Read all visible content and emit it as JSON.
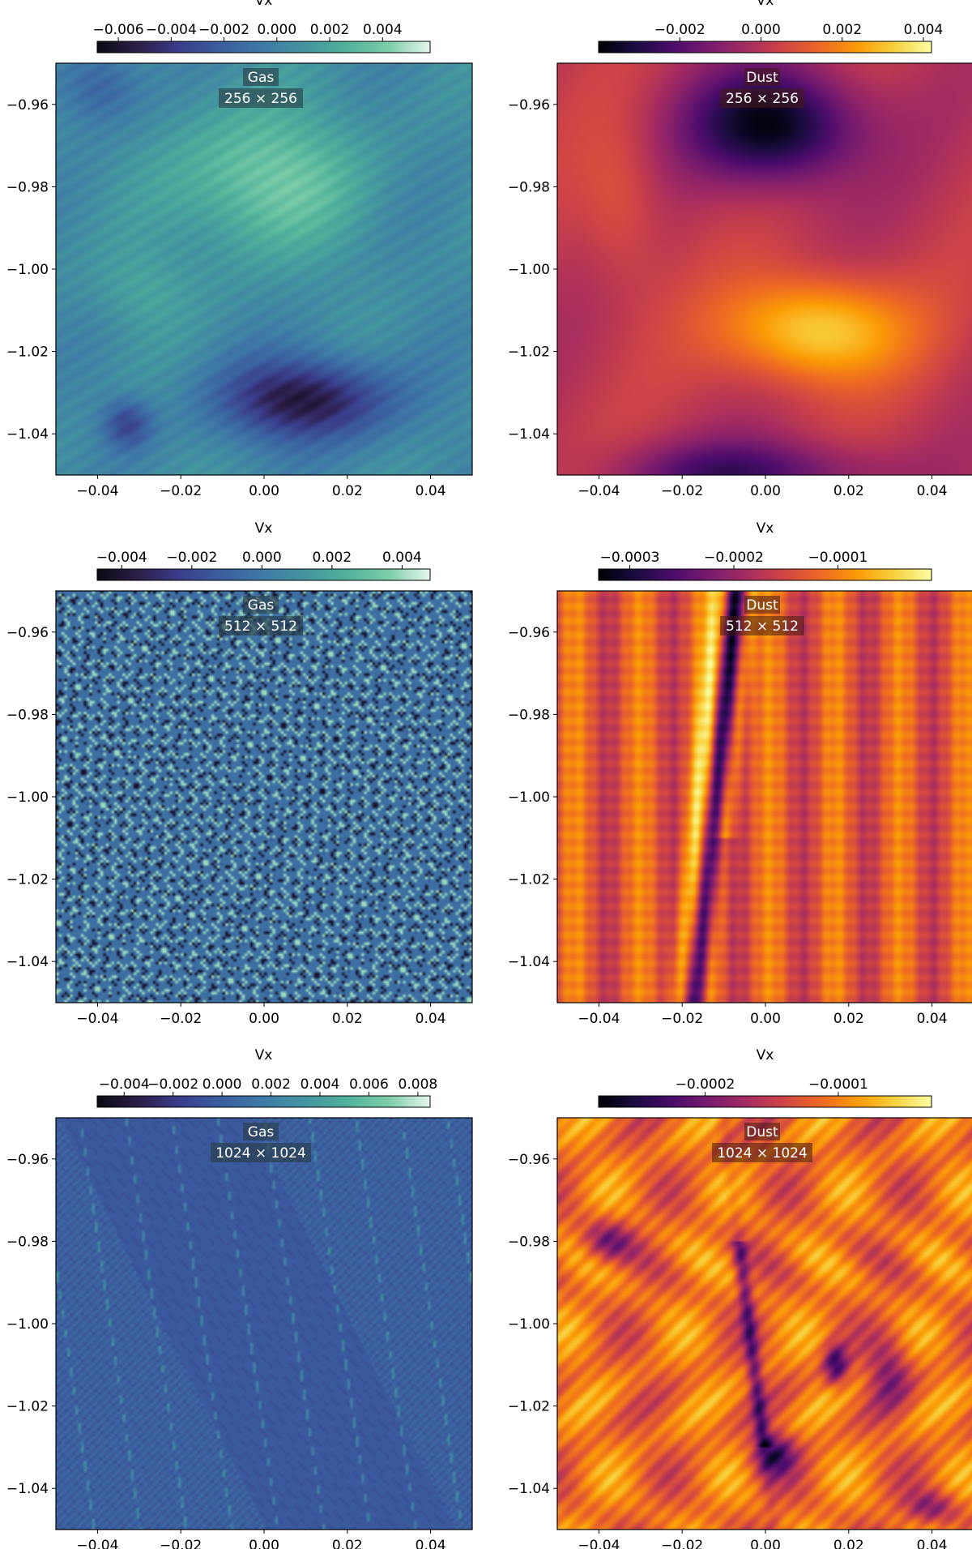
{
  "colormaps": {
    "gas": [
      "#0b0a12",
      "#2d1e4a",
      "#3a3e8c",
      "#3b5e9f",
      "#3f7aa6",
      "#44959f",
      "#50b19a",
      "#7dcda9",
      "#e6f7ec"
    ],
    "dust": [
      "#000004",
      "#1b0c41",
      "#4a0c6b",
      "#781c6d",
      "#a52c60",
      "#cf4446",
      "#ed6925",
      "#fb9b06",
      "#f7d13d",
      "#fcffa4"
    ]
  },
  "chart_data": [
    {
      "type": "heatmap",
      "medium": "Gas",
      "resolution": "256 × 256",
      "colorbar": {
        "label": "Vx",
        "ticks": [
          "−0.006",
          "−0.004",
          "−0.002",
          "0.000",
          "0.002",
          "0.004"
        ],
        "tick_values": [
          -0.006,
          -0.004,
          -0.002,
          0.0,
          0.002,
          0.004
        ],
        "range": [
          -0.0068,
          0.0058
        ],
        "colormap": "gas"
      },
      "x_ticks": [
        "−0.04",
        "−0.02",
        "0.00",
        "0.02",
        "0.04"
      ],
      "x_tick_values": [
        -0.04,
        -0.02,
        0.0,
        0.02,
        0.04
      ],
      "xlim": [
        -0.05,
        0.05
      ],
      "y_ticks": [
        "−0.96",
        "−0.98",
        "−1.00",
        "−1.02",
        "−1.04"
      ],
      "y_tick_values": [
        -0.96,
        -0.98,
        -1.0,
        -1.02,
        -1.04
      ],
      "ylim": [
        -1.05,
        -0.95
      ],
      "field": "smooth"
    },
    {
      "type": "heatmap",
      "medium": "Dust",
      "resolution": "256 × 256",
      "colorbar": {
        "label": "Vx",
        "ticks": [
          "−0.002",
          "0.000",
          "0.002",
          "0.004"
        ],
        "tick_values": [
          -0.002,
          0.0,
          0.002,
          0.004
        ],
        "range": [
          -0.004,
          0.0042
        ],
        "colormap": "dust"
      },
      "x_ticks": [
        "−0.04",
        "−0.02",
        "0.00",
        "0.02",
        "0.04"
      ],
      "x_tick_values": [
        -0.04,
        -0.02,
        0.0,
        0.02,
        0.04
      ],
      "xlim": [
        -0.05,
        0.05
      ],
      "y_ticks": [
        "−0.96",
        "−0.98",
        "−1.00",
        "−1.02",
        "−1.04"
      ],
      "y_tick_values": [
        -0.96,
        -0.98,
        -1.0,
        -1.02,
        -1.04
      ],
      "ylim": [
        -1.05,
        -0.95
      ],
      "field": "smooth"
    },
    {
      "type": "heatmap",
      "medium": "Gas",
      "resolution": "512 × 512",
      "colorbar": {
        "label": "Vx",
        "ticks": [
          "−0.004",
          "−0.002",
          "0.000",
          "0.002",
          "0.004"
        ],
        "tick_values": [
          -0.004,
          -0.002,
          0.0,
          0.002,
          0.004
        ],
        "range": [
          -0.0047,
          0.0048
        ],
        "colormap": "gas"
      },
      "x_ticks": [
        "−0.04",
        "−0.02",
        "0.00",
        "0.02",
        "0.04"
      ],
      "x_tick_values": [
        -0.04,
        -0.02,
        0.0,
        0.02,
        0.04
      ],
      "xlim": [
        -0.05,
        0.05
      ],
      "y_ticks": [
        "−0.96",
        "−0.98",
        "−1.00",
        "−1.02",
        "−1.04"
      ],
      "y_tick_values": [
        -0.96,
        -0.98,
        -1.0,
        -1.02,
        -1.04
      ],
      "ylim": [
        -1.05,
        -0.95
      ],
      "field": "lattice"
    },
    {
      "type": "heatmap",
      "medium": "Dust",
      "resolution": "512 × 512",
      "colorbar": {
        "label": "Vx",
        "ticks": [
          "−0.0003",
          "−0.0002",
          "−0.0001"
        ],
        "tick_values": [
          -0.0003,
          -0.0002,
          -0.0001
        ],
        "range": [
          -0.00033,
          -1e-05
        ],
        "colormap": "dust"
      },
      "x_ticks": [
        "−0.04",
        "−0.02",
        "0.00",
        "0.02",
        "0.04"
      ],
      "x_tick_values": [
        -0.04,
        -0.02,
        0.0,
        0.02,
        0.04
      ],
      "xlim": [
        -0.05,
        0.05
      ],
      "y_ticks": [
        "−0.96",
        "−0.98",
        "−1.00",
        "−1.02",
        "−1.04"
      ],
      "y_tick_values": [
        -0.96,
        -0.98,
        -1.0,
        -1.02,
        -1.04
      ],
      "ylim": [
        -1.05,
        -0.95
      ],
      "field": "streaks"
    },
    {
      "type": "heatmap",
      "medium": "Gas",
      "resolution": "1024 × 1024",
      "colorbar": {
        "label": "Vx",
        "ticks": [
          "−0.004",
          "−0.002",
          "0.000",
          "0.002",
          "0.004",
          "0.006",
          "0.008"
        ],
        "tick_values": [
          -0.004,
          -0.002,
          0.0,
          0.002,
          0.004,
          0.006,
          0.008
        ],
        "range": [
          -0.0051,
          0.0085
        ],
        "colormap": "gas"
      },
      "x_ticks": [
        "−0.04",
        "−0.02",
        "0.00",
        "0.02",
        "0.04"
      ],
      "x_tick_values": [
        -0.04,
        -0.02,
        0.0,
        0.02,
        0.04
      ],
      "xlim": [
        -0.05,
        0.05
      ],
      "y_ticks": [
        "−0.96",
        "−0.98",
        "−1.00",
        "−1.02",
        "−1.04"
      ],
      "y_tick_values": [
        -0.96,
        -0.98,
        -1.0,
        -1.02,
        -1.04
      ],
      "ylim": [
        -1.05,
        -0.95
      ],
      "field": "finegrid"
    },
    {
      "type": "heatmap",
      "medium": "Dust",
      "resolution": "1024 × 1024",
      "colorbar": {
        "label": "Vx",
        "ticks": [
          "−0.0002",
          "−0.0001"
        ],
        "tick_values": [
          -0.0002,
          -0.0001
        ],
        "range": [
          -0.00028,
          -3e-05
        ],
        "colormap": "dust"
      },
      "x_ticks": [
        "−0.04",
        "−0.02",
        "0.00",
        "0.02",
        "0.04"
      ],
      "x_tick_values": [
        -0.04,
        -0.02,
        0.0,
        0.02,
        0.04
      ],
      "xlim": [
        -0.05,
        0.05
      ],
      "y_ticks": [
        "−0.96",
        "−0.98",
        "−1.00",
        "−1.02",
        "−1.04"
      ],
      "y_tick_values": [
        -0.96,
        -0.98,
        -1.0,
        -1.02,
        -1.04
      ],
      "ylim": [
        -1.05,
        -0.95
      ],
      "field": "turbulent"
    }
  ]
}
